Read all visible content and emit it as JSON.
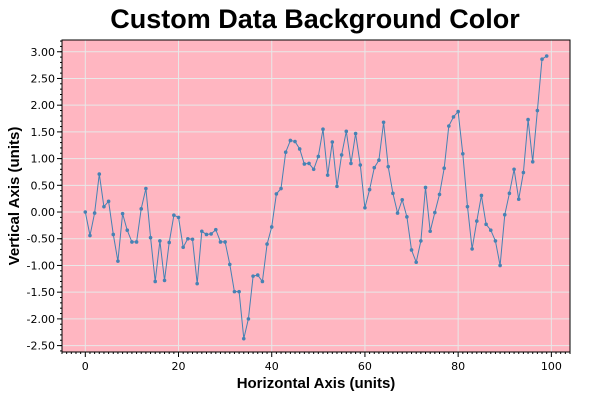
{
  "chart_data": {
    "type": "line",
    "title": "Custom Data Background Color",
    "xlabel": "Horizontal Axis (units)",
    "ylabel": "Vertical Axis (units)",
    "xlim": [
      -5,
      104
    ],
    "ylim": [
      -2.62,
      3.22
    ],
    "x_ticks": [
      0,
      20,
      40,
      60,
      80,
      100
    ],
    "y_ticks": [
      -2.5,
      -2.0,
      -1.5,
      -1.0,
      -0.5,
      0.0,
      0.5,
      1.0,
      1.5,
      2.0,
      2.5,
      3.0
    ],
    "y_tick_labels": [
      "-2.50",
      "-2.00",
      "-1.50",
      "-1.00",
      "-0.50",
      "0.00",
      "0.50",
      "1.00",
      "1.50",
      "2.00",
      "2.50",
      "3.00"
    ],
    "x_tick_labels": [
      "0",
      "20",
      "40",
      "60",
      "80",
      "100"
    ],
    "grid": true,
    "colors": {
      "data_background": "#ffb6c1",
      "line": "#4682b4",
      "grid": "#e8e8e8"
    },
    "series": [
      {
        "x": [
          0,
          1,
          2,
          3,
          4,
          5,
          6,
          7,
          8,
          9,
          10,
          11,
          12,
          13,
          14,
          15,
          16,
          17,
          18,
          19,
          20,
          21,
          22,
          23,
          24,
          25,
          26,
          27,
          28,
          29,
          30,
          31,
          32,
          33,
          34,
          35,
          36,
          37,
          38,
          39,
          40,
          41,
          42,
          43,
          44,
          45,
          46,
          47,
          48,
          49,
          50,
          51,
          52,
          53,
          54,
          55,
          56,
          57,
          58,
          59,
          60,
          61,
          62,
          63,
          64,
          65,
          66,
          67,
          68,
          69,
          70,
          71,
          72,
          73,
          74,
          75,
          76,
          77,
          78,
          79,
          80,
          81,
          82,
          83,
          84,
          85,
          86,
          87,
          88,
          89,
          90,
          91,
          92,
          93,
          94,
          95,
          96,
          97,
          98,
          99
        ],
        "y": [
          0.0,
          -0.44,
          -0.02,
          0.71,
          0.1,
          0.2,
          -0.42,
          -0.92,
          -0.03,
          -0.34,
          -0.56,
          -0.56,
          0.06,
          0.44,
          -0.48,
          -1.3,
          -0.54,
          -1.28,
          -0.57,
          -0.06,
          -0.1,
          -0.66,
          -0.5,
          -0.51,
          -1.34,
          -0.36,
          -0.42,
          -0.41,
          -0.33,
          -0.56,
          -0.56,
          -0.98,
          -1.49,
          -1.49,
          -2.37,
          -2.0,
          -1.2,
          -1.18,
          -1.3,
          -0.6,
          -0.28,
          0.34,
          0.44,
          1.12,
          1.34,
          1.32,
          1.18,
          0.9,
          0.91,
          0.8,
          1.04,
          1.55,
          0.69,
          1.31,
          0.48,
          1.07,
          1.51,
          0.91,
          1.47,
          0.88,
          0.08,
          0.42,
          0.83,
          0.97,
          1.68,
          0.85,
          0.35,
          -0.02,
          0.23,
          -0.09,
          -0.71,
          -0.94,
          -0.54,
          0.46,
          -0.36,
          -0.01,
          0.33,
          0.82,
          1.61,
          1.78,
          1.88,
          1.09,
          0.1,
          -0.69,
          -0.17,
          0.31,
          -0.23,
          -0.34,
          -0.54,
          -1.0,
          -0.05,
          0.35,
          0.8,
          0.24,
          0.74,
          1.73,
          0.94,
          1.9,
          2.86,
          2.92
        ]
      }
    ]
  }
}
